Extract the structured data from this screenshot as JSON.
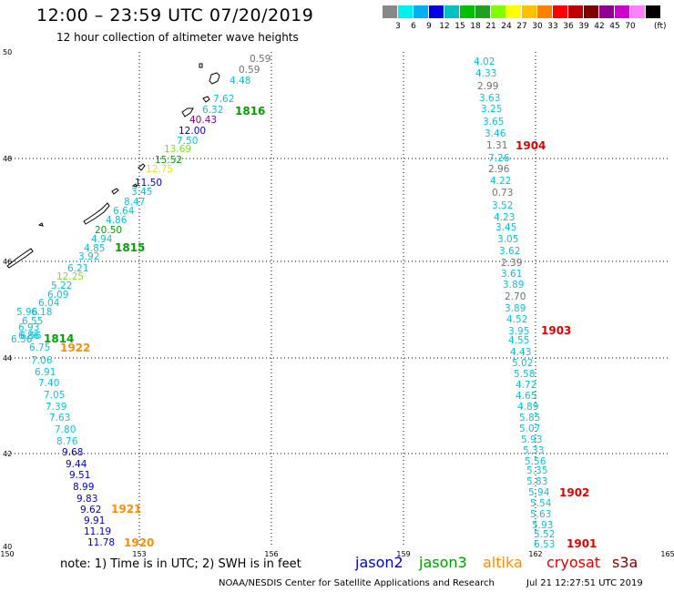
{
  "header": {
    "title": "12:00 – 23:59 UTC 07/20/2019",
    "subtitle": "12 hour collection of altimeter wave heights"
  },
  "colorbar": {
    "colors": [
      "#888888",
      "#00f0f0",
      "#00b0f0",
      "#0000e0",
      "#00c0c0",
      "#00c000",
      "#20a020",
      "#80ff00",
      "#ffff00",
      "#ffc000",
      "#ff8000",
      "#ff0000",
      "#c00000",
      "#800000",
      "#900090",
      "#d000d0",
      "#ff80ff",
      "#000000"
    ],
    "labels": [
      "3",
      "6",
      "9",
      "12",
      "15",
      "18",
      "21",
      "24",
      "27",
      "30",
      "33",
      "36",
      "39",
      "42",
      "45",
      "70"
    ],
    "unit": "(ft)"
  },
  "axes": {
    "lon_ticks": [
      "150",
      "153",
      "156",
      "159",
      "162",
      "165"
    ],
    "lat_ticks": [
      "50",
      "48",
      "46",
      "44",
      "42",
      "40"
    ]
  },
  "colors": {
    "jason2": "#0000cc",
    "jason3": "#00a000",
    "altika": "#ff8c00",
    "cryosat": "#e00000",
    "s3a": "#800000",
    "cyan": "#00c8e0",
    "gray": "#707070",
    "light_green": "#80e020",
    "yellow": "#f0e000",
    "purple": "#900090"
  },
  "west_track": [
    {
      "v": "0.59",
      "c": "gray"
    },
    {
      "v": "0.59",
      "c": "gray"
    },
    {
      "v": "4.48",
      "c": "cyan"
    },
    {
      "v": "7.62",
      "c": "cyan"
    },
    {
      "v": "6.32",
      "c": "cyan"
    },
    {
      "v": "40.43",
      "c": "purple"
    },
    {
      "v": "12.00",
      "c": "jason2"
    },
    {
      "v": "7.50",
      "c": "cyan"
    },
    {
      "v": "13.69",
      "c": "light_green"
    },
    {
      "v": "15.52",
      "c": "jason3"
    },
    {
      "v": "12.75",
      "c": "yellow"
    },
    {
      "v": "11.50",
      "c": "jason2"
    },
    {
      "v": "3.45",
      "c": "cyan"
    },
    {
      "v": "8.47",
      "c": "cyan"
    },
    {
      "v": "6.64",
      "c": "cyan"
    },
    {
      "v": "4.86",
      "c": "cyan"
    },
    {
      "v": "20.50",
      "c": "jason3"
    },
    {
      "v": "4.94",
      "c": "cyan"
    },
    {
      "v": "4.85",
      "c": "cyan"
    },
    {
      "v": "3.92",
      "c": "cyan"
    },
    {
      "v": "6.21",
      "c": "cyan"
    },
    {
      "v": "12.25",
      "c": "light_green"
    },
    {
      "v": "5.22",
      "c": "cyan"
    },
    {
      "v": "6.09",
      "c": "cyan"
    },
    {
      "v": "6.04",
      "c": "cyan"
    },
    {
      "v": "6.18",
      "c": "cyan"
    },
    {
      "v": "5.96",
      "c": "cyan"
    },
    {
      "v": "6.55",
      "c": "cyan"
    },
    {
      "v": "6.93",
      "c": "cyan"
    },
    {
      "v": "6.86",
      "c": "cyan"
    },
    {
      "v": "6.56",
      "c": "cyan"
    },
    {
      "v": "6.36",
      "c": "cyan"
    },
    {
      "v": "6.75",
      "c": "cyan"
    },
    {
      "v": "7.06",
      "c": "cyan"
    },
    {
      "v": "6.91",
      "c": "cyan"
    },
    {
      "v": "7.40",
      "c": "cyan"
    },
    {
      "v": "7.05",
      "c": "cyan"
    },
    {
      "v": "7.39",
      "c": "cyan"
    },
    {
      "v": "7.63",
      "c": "cyan"
    },
    {
      "v": "7.80",
      "c": "cyan"
    },
    {
      "v": "8.76",
      "c": "cyan"
    },
    {
      "v": "9.68",
      "c": "jason2"
    },
    {
      "v": "9.44",
      "c": "jason2"
    },
    {
      "v": "9.51",
      "c": "jason2"
    },
    {
      "v": "8.99",
      "c": "jason2"
    },
    {
      "v": "9.83",
      "c": "jason2"
    },
    {
      "v": "9.62",
      "c": "jason2"
    },
    {
      "v": "9.91",
      "c": "jason2"
    },
    {
      "v": "11.19",
      "c": "jason2"
    },
    {
      "v": "11.78",
      "c": "jason2"
    }
  ],
  "west_hours": [
    {
      "t": "1816",
      "c": "jason3"
    },
    {
      "t": "1815",
      "c": "jason3"
    },
    {
      "t": "1814",
      "c": "jason3"
    },
    {
      "t": "1922",
      "c": "altika"
    },
    {
      "t": "1921",
      "c": "altika"
    },
    {
      "t": "1920",
      "c": "altika"
    }
  ],
  "east_track": [
    {
      "v": "4.02",
      "c": "cyan"
    },
    {
      "v": "4.33",
      "c": "cyan"
    },
    {
      "v": "2.99",
      "c": "gray"
    },
    {
      "v": "3.63",
      "c": "cyan"
    },
    {
      "v": "3.25",
      "c": "cyan"
    },
    {
      "v": "3.65",
      "c": "cyan"
    },
    {
      "v": "3.46",
      "c": "cyan"
    },
    {
      "v": "1.31",
      "c": "gray"
    },
    {
      "v": "7.26",
      "c": "cyan"
    },
    {
      "v": "2.96",
      "c": "gray"
    },
    {
      "v": "4.22",
      "c": "cyan"
    },
    {
      "v": "0.73",
      "c": "gray"
    },
    {
      "v": "3.52",
      "c": "cyan"
    },
    {
      "v": "4.23",
      "c": "cyan"
    },
    {
      "v": "3.45",
      "c": "cyan"
    },
    {
      "v": "3.05",
      "c": "cyan"
    },
    {
      "v": "3.62",
      "c": "cyan"
    },
    {
      "v": "2.39",
      "c": "gray"
    },
    {
      "v": "3.61",
      "c": "cyan"
    },
    {
      "v": "3.89",
      "c": "cyan"
    },
    {
      "v": "2.70",
      "c": "gray"
    },
    {
      "v": "3.89",
      "c": "cyan"
    },
    {
      "v": "4.52",
      "c": "cyan"
    },
    {
      "v": "3.95",
      "c": "cyan"
    },
    {
      "v": "4.55",
      "c": "cyan"
    },
    {
      "v": "4.43",
      "c": "cyan"
    },
    {
      "v": "5.02",
      "c": "cyan"
    },
    {
      "v": "5.58",
      "c": "cyan"
    },
    {
      "v": "4.72",
      "c": "cyan"
    },
    {
      "v": "4.65",
      "c": "cyan"
    },
    {
      "v": "4.89",
      "c": "cyan"
    },
    {
      "v": "5.85",
      "c": "cyan"
    },
    {
      "v": "5.07",
      "c": "cyan"
    },
    {
      "v": "5.93",
      "c": "cyan"
    },
    {
      "v": "5.33",
      "c": "cyan"
    },
    {
      "v": "5.56",
      "c": "cyan"
    },
    {
      "v": "5.35",
      "c": "cyan"
    },
    {
      "v": "5.83",
      "c": "cyan"
    },
    {
      "v": "5.94",
      "c": "cyan"
    },
    {
      "v": "5.54",
      "c": "cyan"
    },
    {
      "v": "5.63",
      "c": "cyan"
    },
    {
      "v": "5.93",
      "c": "cyan"
    },
    {
      "v": "5.52",
      "c": "cyan"
    },
    {
      "v": "6.53",
      "c": "cyan"
    }
  ],
  "east_hours": [
    {
      "t": "1904",
      "c": "cryosat"
    },
    {
      "t": "1903",
      "c": "cryosat"
    },
    {
      "t": "1902",
      "c": "cryosat"
    },
    {
      "t": "1901",
      "c": "cryosat"
    }
  ],
  "footer": {
    "note": "note:  1) Time is in UTC;  2) SWH is in feet",
    "legend": [
      {
        "label": "jason2",
        "c": "jason2"
      },
      {
        "label": "jason3",
        "c": "jason3"
      },
      {
        "label": "altika",
        "c": "altika"
      },
      {
        "label": "cryosat",
        "c": "cryosat"
      },
      {
        "label": "s3a",
        "c": "s3a"
      }
    ],
    "credit": "NOAA/NESDIS Center for Satellite Applications and Research",
    "timestamp": "Jul 21 12:27:51 UTC 2019"
  }
}
